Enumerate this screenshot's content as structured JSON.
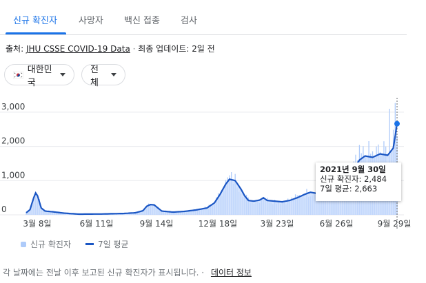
{
  "tabs": [
    {
      "label": "신규 확진자",
      "active": true
    },
    {
      "label": "사망자",
      "active": false
    },
    {
      "label": "백신 접종",
      "active": false
    },
    {
      "label": "검사",
      "active": false
    }
  ],
  "source": {
    "prefix": "출처:",
    "link": "JHU CSSE COVID-19 Data",
    "separator": "·",
    "updated": "최종 업데이트: 2일 전"
  },
  "filters": {
    "region": "대한민국",
    "region_flag_icon": "south-korea-flag-icon",
    "scope": "전체"
  },
  "tooltip": {
    "date": "2021년 9월 30일",
    "cases_line": "신규 확진자: 2,484",
    "avg_line": "7일 평균: 2,663"
  },
  "legend": {
    "cases": "신규 확진자",
    "avg": "7일 평균"
  },
  "footer": {
    "note": "각 날짜에는 전날 이후 보고된 신규 확진자가 표시됩니다.",
    "separator": "·",
    "link": "데이터 정보"
  },
  "colors": {
    "accent": "#1a73e8",
    "bar": "#aecbfa",
    "area": "#c6dafc",
    "line": "#1a56c4"
  },
  "chart_data": {
    "type": "area",
    "y_ticks": [
      "3,000",
      "2,000",
      "1,000",
      "0"
    ],
    "ylim": [
      0,
      3300
    ],
    "x_ticks": [
      "3월 8일",
      "6월 11일",
      "9월 14일",
      "12월 18일",
      "3월 23일",
      "6월 26일",
      "9월 29일"
    ],
    "avg_series": {
      "name": "7일 평균",
      "points": [
        [
          0,
          60
        ],
        [
          2,
          150
        ],
        [
          4,
          500
        ],
        [
          5,
          640
        ],
        [
          6,
          560
        ],
        [
          8,
          200
        ],
        [
          10,
          110
        ],
        [
          14,
          90
        ],
        [
          20,
          50
        ],
        [
          28,
          20
        ],
        [
          40,
          25
        ],
        [
          52,
          40
        ],
        [
          58,
          60
        ],
        [
          62,
          120
        ],
        [
          64,
          250
        ],
        [
          66,
          300
        ],
        [
          68,
          290
        ],
        [
          70,
          200
        ],
        [
          72,
          110
        ],
        [
          78,
          80
        ],
        [
          84,
          100
        ],
        [
          90,
          140
        ],
        [
          96,
          200
        ],
        [
          100,
          350
        ],
        [
          103,
          600
        ],
        [
          106,
          900
        ],
        [
          108,
          1040
        ],
        [
          111,
          1000
        ],
        [
          114,
          760
        ],
        [
          116,
          560
        ],
        [
          118,
          420
        ],
        [
          121,
          400
        ],
        [
          124,
          430
        ],
        [
          126,
          500
        ],
        [
          128,
          420
        ],
        [
          132,
          400
        ],
        [
          136,
          380
        ],
        [
          140,
          420
        ],
        [
          144,
          500
        ],
        [
          148,
          600
        ],
        [
          151,
          660
        ],
        [
          155,
          620
        ],
        [
          159,
          550
        ],
        [
          162,
          620
        ],
        [
          165,
          560
        ],
        [
          169,
          700
        ],
        [
          172,
          1050
        ],
        [
          174,
          1330
        ],
        [
          177,
          1600
        ],
        [
          180,
          1720
        ],
        [
          184,
          1680
        ],
        [
          188,
          1780
        ],
        [
          192,
          1740
        ],
        [
          195,
          1950
        ],
        [
          196,
          2300
        ],
        [
          197,
          2663
        ]
      ]
    },
    "cases_series": {
      "name": "신규 확진자",
      "note": "daily bars follow the 7-day average with noise; peak near 3,270 at end"
    },
    "highlight": {
      "index": 197,
      "value": 2663
    }
  }
}
